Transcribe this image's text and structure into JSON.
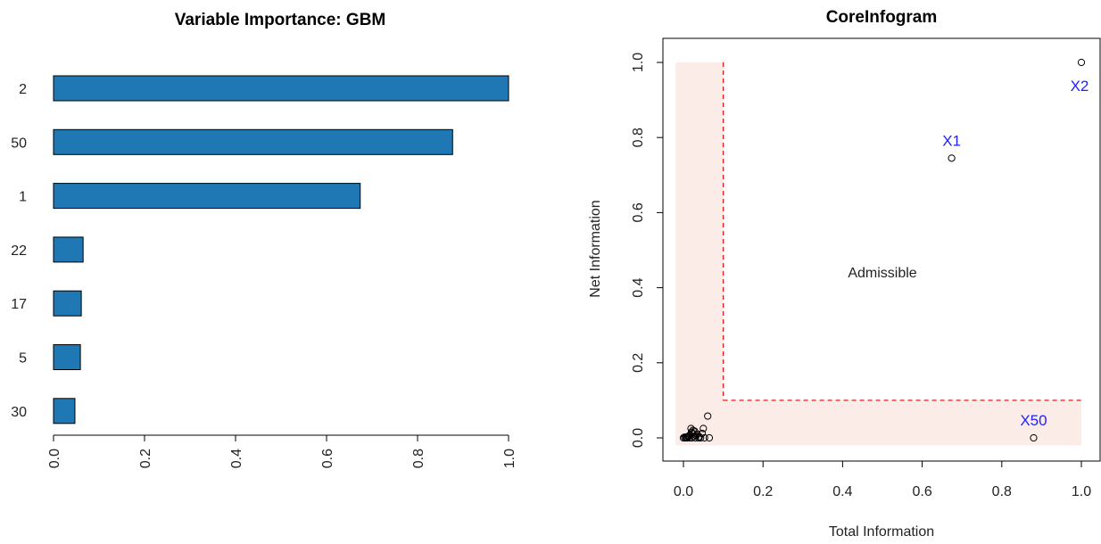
{
  "chart_data": [
    {
      "type": "bar",
      "orientation": "horizontal",
      "title": "Variable Importance: GBM",
      "xlabel": "",
      "ylabel": "",
      "categories": [
        "2",
        "50",
        "1",
        "22",
        "17",
        "5",
        "30"
      ],
      "values": [
        1.0,
        0.877,
        0.674,
        0.065,
        0.061,
        0.059,
        0.047
      ],
      "xlim": [
        0,
        1
      ],
      "xticks": [
        "0.0",
        "0.2",
        "0.4",
        "0.6",
        "0.8",
        "1.0"
      ],
      "bar_color": "#1f77b4",
      "grid": false
    },
    {
      "type": "scatter",
      "title": "CoreInfogram",
      "xlabel": "Total Information",
      "ylabel": "Net Information",
      "xlim": [
        0,
        1
      ],
      "ylim": [
        0,
        1
      ],
      "xticks": [
        "0.0",
        "0.2",
        "0.4",
        "0.6",
        "0.8",
        "1.0"
      ],
      "yticks": [
        "0.0",
        "0.2",
        "0.4",
        "0.6",
        "0.8",
        "1.0"
      ],
      "thresholds": {
        "total": 0.1,
        "net": 0.1
      },
      "admissible_label": "Admissible",
      "shade_color": "#fbece8",
      "threshold_color": "#e41a1c",
      "label_color": "#1f1fff",
      "labeled_points": [
        {
          "label": "X2",
          "x": 1.0,
          "y": 1.0
        },
        {
          "label": "X1",
          "x": 0.674,
          "y": 0.745
        },
        {
          "label": "X50",
          "x": 0.88,
          "y": 0.0
        }
      ],
      "points": [
        {
          "x": 0.0,
          "y": 0.0
        },
        {
          "x": 0.004,
          "y": 0.0
        },
        {
          "x": 0.007,
          "y": 0.001
        },
        {
          "x": 0.01,
          "y": 0.0
        },
        {
          "x": 0.012,
          "y": 0.003
        },
        {
          "x": 0.015,
          "y": 0.0
        },
        {
          "x": 0.017,
          "y": 0.008
        },
        {
          "x": 0.019,
          "y": 0.025
        },
        {
          "x": 0.021,
          "y": 0.0
        },
        {
          "x": 0.023,
          "y": 0.012
        },
        {
          "x": 0.026,
          "y": 0.004
        },
        {
          "x": 0.028,
          "y": 0.018
        },
        {
          "x": 0.03,
          "y": 0.0
        },
        {
          "x": 0.032,
          "y": 0.006
        },
        {
          "x": 0.035,
          "y": 0.01
        },
        {
          "x": 0.04,
          "y": 0.003
        },
        {
          "x": 0.043,
          "y": 0.0
        },
        {
          "x": 0.047,
          "y": 0.012
        },
        {
          "x": 0.05,
          "y": 0.025
        },
        {
          "x": 0.053,
          "y": 0.0
        },
        {
          "x": 0.061,
          "y": 0.058
        },
        {
          "x": 0.065,
          "y": 0.0
        },
        {
          "x": 0.003,
          "y": 0.002
        },
        {
          "x": 0.008,
          "y": 0.0
        },
        {
          "x": 0.013,
          "y": 0.005
        },
        {
          "x": 0.02,
          "y": 0.015
        },
        {
          "x": 0.024,
          "y": 0.02
        },
        {
          "x": 0.038,
          "y": 0.0
        }
      ]
    }
  ]
}
